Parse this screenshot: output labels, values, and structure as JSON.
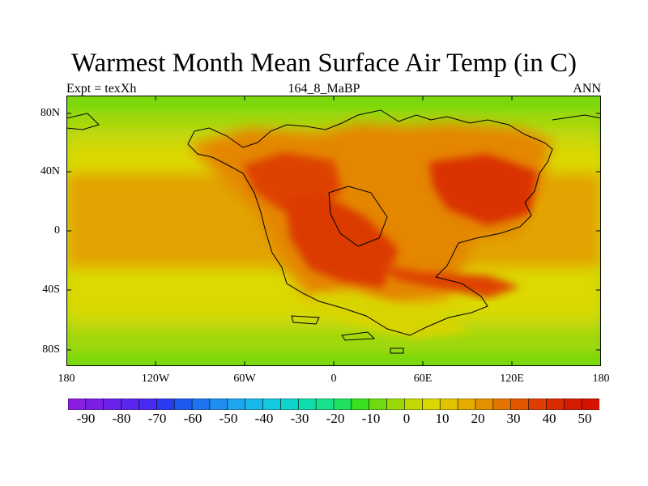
{
  "header": {
    "title": "Warmest Month Mean Surface Air Temp (in C)",
    "left_label": "Expt = texXh",
    "center_label": "164_8_MaBP",
    "right_label": "ANN"
  },
  "map": {
    "lat_ticks": [
      "80N",
      "40N",
      "0",
      "40S",
      "80S"
    ],
    "lon_ticks": [
      "180",
      "120W",
      "60W",
      "0",
      "60E",
      "120E",
      "180"
    ],
    "lon_range": [
      -180,
      180
    ],
    "lat_range": [
      -90,
      90
    ],
    "field_summary": {
      "polar_band_C": 5,
      "midlat_band_C": 18,
      "subtropical_ocean_C": 25,
      "continental_interior_C": 40
    }
  },
  "colorbar": {
    "labels": [
      "-90",
      "-80",
      "-70",
      "-60",
      "-50",
      "-40",
      "-30",
      "-20",
      "-10",
      "0",
      "10",
      "20",
      "30",
      "40",
      "50"
    ],
    "range": [
      -95,
      55
    ],
    "step": 5,
    "colors": [
      "#8a1ee0",
      "#7a1ee6",
      "#6a22ea",
      "#5a26ee",
      "#4a2af0",
      "#2a3cf0",
      "#1e5af0",
      "#1e74f0",
      "#1e8ef0",
      "#1ea6f0",
      "#1ab8ea",
      "#14c8e0",
      "#10d4cc",
      "#10dcae",
      "#18e08c",
      "#20e060",
      "#38e020",
      "#70da10",
      "#9cd808",
      "#c2d804",
      "#d8d800",
      "#e0c400",
      "#e4ac00",
      "#e49000",
      "#e47400",
      "#e25600",
      "#de3e00",
      "#da2a00",
      "#d61c00",
      "#d41400"
    ]
  }
}
